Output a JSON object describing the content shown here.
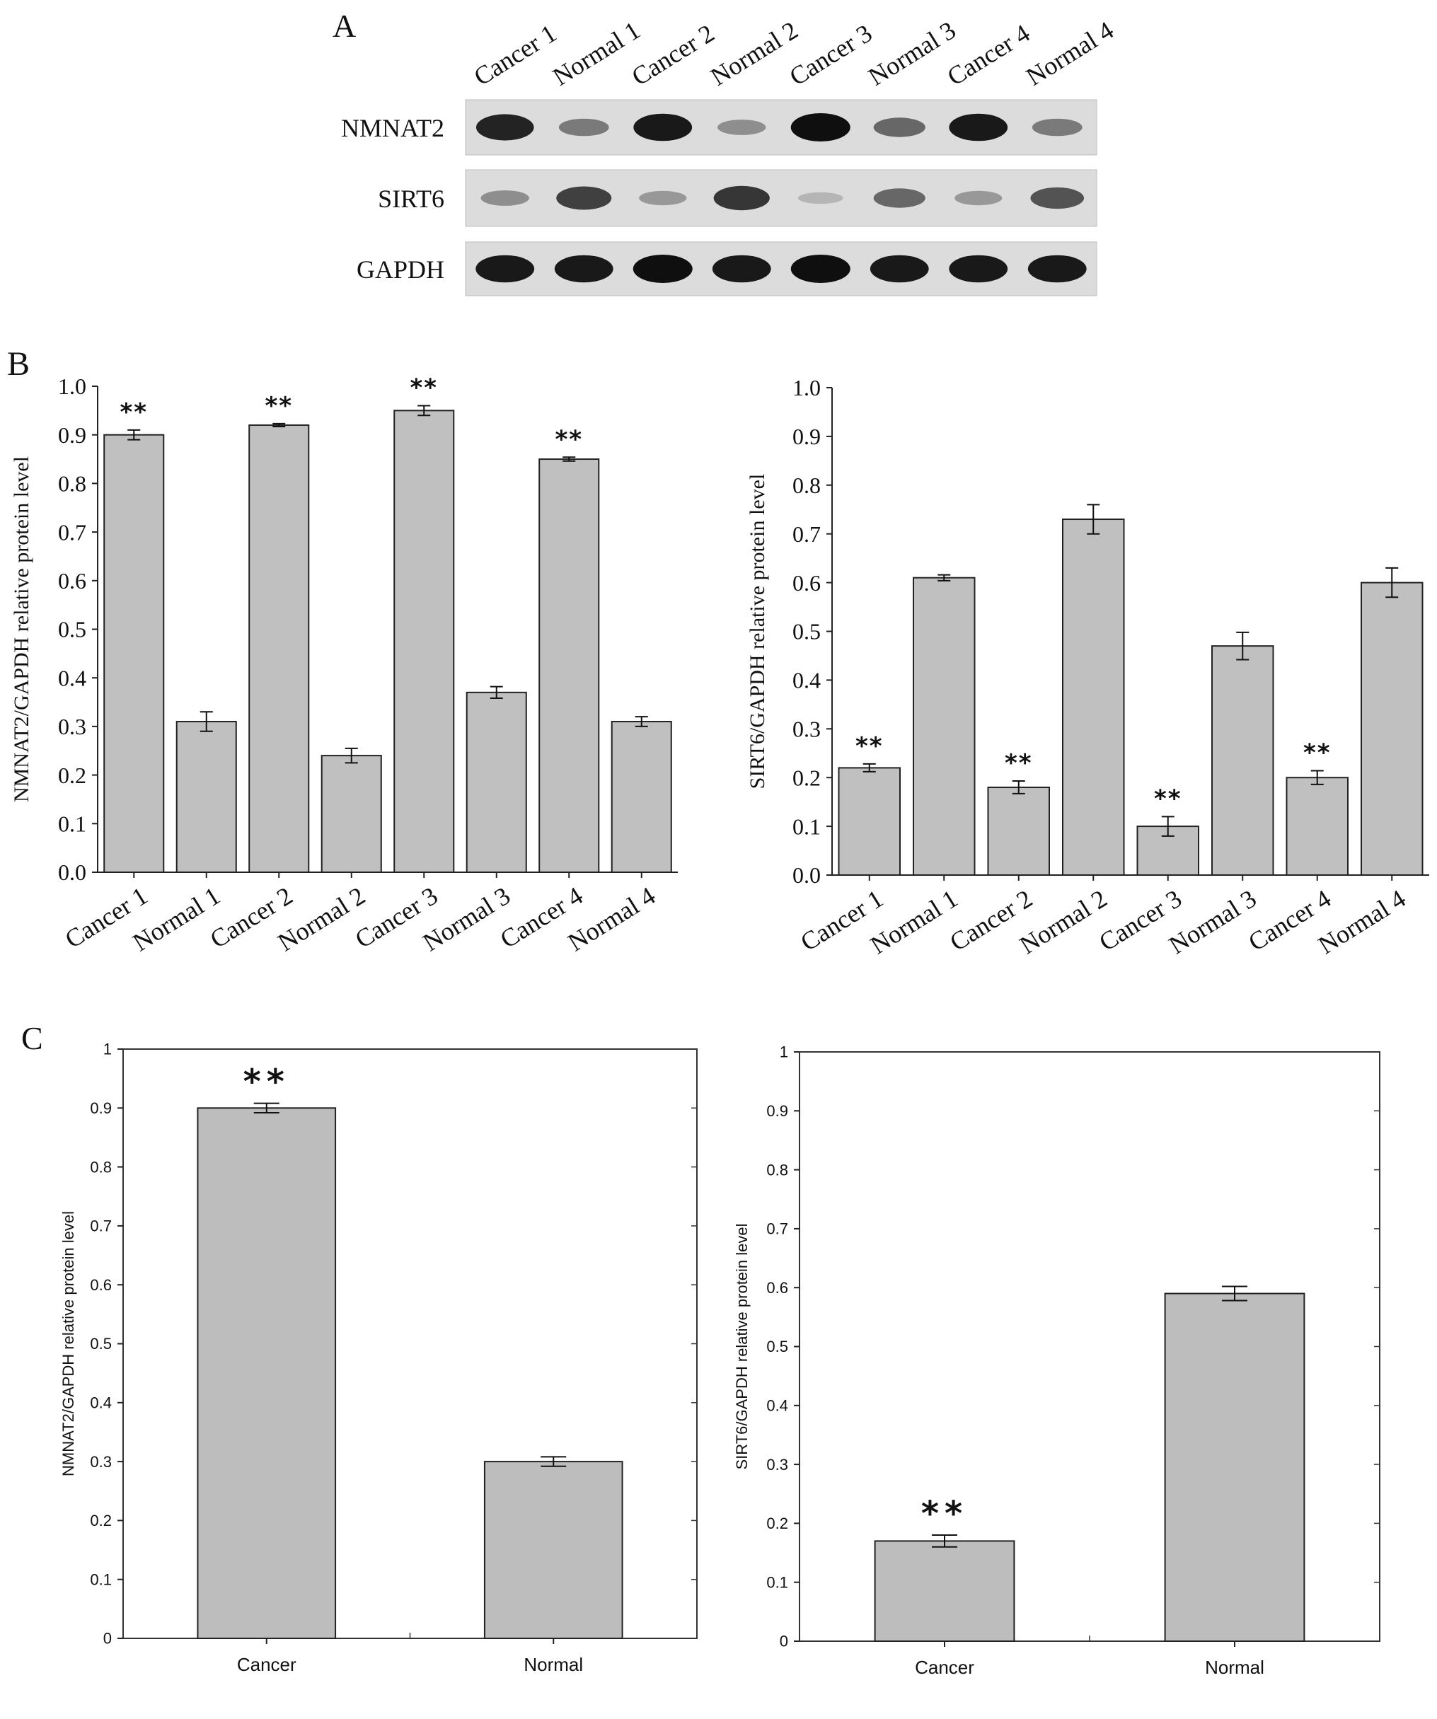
{
  "panel_labels": [
    "A",
    "B",
    "C"
  ],
  "blot": {
    "lanes": [
      "Cancer 1",
      "Normal 1",
      "Cancer 2",
      "Normal 2",
      "Cancer 3",
      "Normal 3",
      "Cancer 4",
      "Normal 4"
    ],
    "rows": [
      {
        "label": "NMNAT2",
        "intensity": [
          0.9,
          0.45,
          0.95,
          0.35,
          1.0,
          0.55,
          0.95,
          0.45
        ]
      },
      {
        "label": "SIRT6",
        "intensity": [
          0.35,
          0.75,
          0.3,
          0.8,
          0.15,
          0.55,
          0.3,
          0.65
        ]
      },
      {
        "label": "GAPDH",
        "intensity": [
          0.95,
          0.95,
          1.0,
          0.95,
          1.0,
          0.95,
          0.95,
          0.95
        ]
      }
    ]
  },
  "chart_data": [
    {
      "type": "bar",
      "panel": "B",
      "ylabel": "NMNAT2/GAPDH relative protein level",
      "categories": [
        "Cancer 1",
        "Normal 1",
        "Cancer 2",
        "Normal 2",
        "Cancer 3",
        "Normal 3",
        "Cancer 4",
        "Normal 4"
      ],
      "values": [
        0.9,
        0.31,
        0.92,
        0.24,
        0.95,
        0.37,
        0.85,
        0.31
      ],
      "errors": [
        0.01,
        0.02,
        0.003,
        0.015,
        0.01,
        0.012,
        0.004,
        0.01
      ],
      "annotations": [
        "**",
        "",
        "**",
        "",
        "**",
        "",
        "**",
        ""
      ],
      "ylim": [
        0,
        1
      ],
      "yticks": [
        "0.0",
        "0.1",
        "0.2",
        "0.3",
        "0.4",
        "0.5",
        "0.6",
        "0.7",
        "0.8",
        "0.9",
        "1.0"
      ],
      "bar_color": "#c0c0c0"
    },
    {
      "type": "bar",
      "panel": "B",
      "ylabel": "SIRT6/GAPDH relative protein level",
      "categories": [
        "Cancer 1",
        "Normal 1",
        "Cancer 2",
        "Normal 2",
        "Cancer 3",
        "Normal 3",
        "Cancer 4",
        "Normal 4"
      ],
      "values": [
        0.22,
        0.61,
        0.18,
        0.73,
        0.1,
        0.47,
        0.2,
        0.6
      ],
      "errors": [
        0.008,
        0.006,
        0.013,
        0.03,
        0.02,
        0.028,
        0.014,
        0.03
      ],
      "annotations": [
        "**",
        "",
        "**",
        "",
        "**",
        "",
        "**",
        ""
      ],
      "ylim": [
        0,
        1
      ],
      "yticks": [
        "0.0",
        "0.1",
        "0.2",
        "0.3",
        "0.4",
        "0.5",
        "0.6",
        "0.7",
        "0.8",
        "0.9",
        "1.0"
      ],
      "bar_color": "#c0c0c0"
    },
    {
      "type": "bar",
      "panel": "C",
      "ylabel": "NMNAT2/GAPDH relative protein level",
      "categories": [
        "Cancer",
        "Normal"
      ],
      "values": [
        0.9,
        0.3
      ],
      "errors": [
        0.008,
        0.008
      ],
      "annotations": [
        "**",
        ""
      ],
      "ylim": [
        0,
        1
      ],
      "yticks": [
        "0",
        "0.1",
        "0.2",
        "0.3",
        "0.4",
        "0.5",
        "0.6",
        "0.7",
        "0.8",
        "0.9",
        "1"
      ],
      "bar_color": "#bdbdbd"
    },
    {
      "type": "bar",
      "panel": "C",
      "ylabel": "SIRT6/GAPDH relative protein level",
      "categories": [
        "Cancer",
        "Normal"
      ],
      "values": [
        0.17,
        0.59
      ],
      "errors": [
        0.01,
        0.012
      ],
      "annotations": [
        "**",
        ""
      ],
      "ylim": [
        0,
        1
      ],
      "yticks": [
        "0",
        "0.1",
        "0.2",
        "0.3",
        "0.4",
        "0.5",
        "0.6",
        "0.7",
        "0.8",
        "0.9",
        "1"
      ],
      "bar_color": "#bdbdbd"
    }
  ]
}
